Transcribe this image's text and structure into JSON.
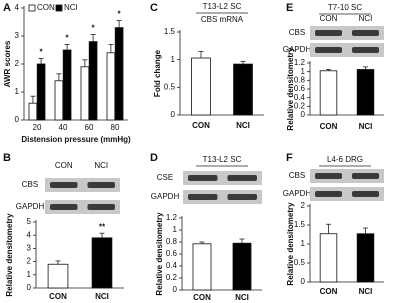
{
  "chart_data": [
    {
      "panel": "A",
      "type": "bar",
      "ylabel": "AWR scores",
      "xlabel": "Distension pressure (mmHg)",
      "categories": [
        "20",
        "40",
        "60",
        "80"
      ],
      "series": [
        {
          "name": "CON",
          "color": "#ffffff",
          "values": [
            0.6,
            1.4,
            1.9,
            2.4
          ],
          "errors": [
            0.25,
            0.25,
            0.25,
            0.3
          ]
        },
        {
          "name": "NCI",
          "color": "#000000",
          "values": [
            2.0,
            2.5,
            2.8,
            3.3
          ],
          "errors": [
            0.2,
            0.2,
            0.25,
            0.25
          ]
        }
      ],
      "annotations": [
        "*",
        "*",
        "*",
        "*"
      ],
      "ylim": [
        0,
        4
      ],
      "yticks": [
        0,
        1,
        2,
        3,
        4
      ]
    },
    {
      "panel": "B",
      "type": "bar",
      "blot": {
        "lanes": [
          "CON",
          "NCI"
        ],
        "rows": [
          "CBS",
          "GAPDH"
        ]
      },
      "ylabel": "Relative densitometry",
      "categories": [
        "CON",
        "NCI"
      ],
      "values": [
        1.8,
        3.8
      ],
      "errors": [
        0.25,
        0.35
      ],
      "colors": [
        "#ffffff",
        "#000000"
      ],
      "annotation": "**",
      "ylim": [
        0,
        5
      ],
      "yticks": [
        0,
        1,
        2,
        3,
        4,
        5
      ]
    },
    {
      "panel": "C",
      "type": "bar",
      "title": "T13-L2 SC",
      "subtitle": "CBS mRNA",
      "ylabel": "Fold change",
      "categories": [
        "CON",
        "NCI"
      ],
      "values": [
        1.03,
        0.92
      ],
      "errors": [
        0.12,
        0.05
      ],
      "colors": [
        "#ffffff",
        "#000000"
      ],
      "ylim": [
        0,
        1.5
      ],
      "yticks": [
        0,
        0.5,
        1,
        1.5
      ]
    },
    {
      "panel": "D",
      "type": "bar",
      "title": "T13-L2 SC",
      "blot": {
        "rows": [
          "CSE",
          "GAPDH"
        ]
      },
      "ylabel": "Relative densitometry",
      "categories": [
        "CON",
        "NCI"
      ],
      "values": [
        0.77,
        0.78
      ],
      "errors": [
        0.03,
        0.07
      ],
      "colors": [
        "#ffffff",
        "#000000"
      ],
      "ylim": [
        0,
        1.2
      ],
      "yticks": [
        0,
        0.2,
        0.4,
        0.6,
        0.8,
        1,
        1.2
      ]
    },
    {
      "panel": "E",
      "type": "bar",
      "title": "T7-10 SC",
      "blot": {
        "lanes": [
          "CON",
          "NCI"
        ],
        "rows": [
          "CBS",
          "GAPDH"
        ]
      },
      "ylabel": "Relative densitometry",
      "categories": [
        "CON",
        "NCI"
      ],
      "values": [
        1.02,
        1.05
      ],
      "errors": [
        0.03,
        0.06
      ],
      "colors": [
        "#ffffff",
        "#000000"
      ],
      "ylim": [
        0,
        1.2
      ],
      "yticks": [
        0,
        0.2,
        0.4,
        0.6,
        0.8,
        1,
        1.2
      ]
    },
    {
      "panel": "F",
      "type": "bar",
      "title": "L4-6 DRG",
      "blot": {
        "rows": [
          "CBS",
          "GAPDH"
        ]
      },
      "ylabel": "Relative densitometry",
      "categories": [
        "CON",
        "NCI"
      ],
      "values": [
        1.27,
        1.27
      ],
      "errors": [
        0.25,
        0.15
      ],
      "colors": [
        "#ffffff",
        "#000000"
      ],
      "ylim": [
        0,
        2
      ],
      "yticks": [
        0,
        0.5,
        1,
        1.5,
        2
      ]
    }
  ]
}
